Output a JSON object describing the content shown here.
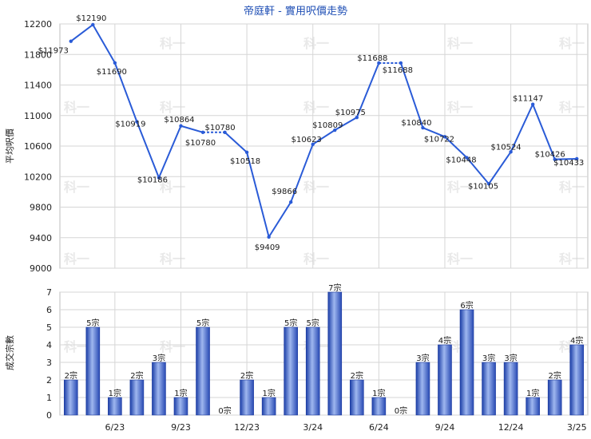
{
  "chart_data": [
    {
      "type": "line",
      "title": "帝庭軒 - 實用呎價走勢",
      "ylabel": "平均呎價",
      "ylim": [
        9000,
        12200
      ],
      "yticks": [
        9000,
        9400,
        9800,
        10200,
        10600,
        11000,
        11400,
        11800,
        12200
      ],
      "grid": true,
      "series": [
        {
          "color": "#2a5bd7",
          "values": [
            11973,
            12190,
            11690,
            10919,
            10186,
            10864,
            10780,
            10780,
            10518,
            9409,
            9866,
            10623,
            10809,
            10975,
            11688,
            11688,
            10840,
            10722,
            10448,
            10105,
            10524,
            11147,
            10426,
            10433
          ],
          "labels": [
            "$11973",
            "$12190",
            "$11690",
            "$10919",
            "$10186",
            "$10864",
            "$10780",
            "$10780",
            "$10518",
            "$9409",
            "$9866",
            "$10623",
            "$10809",
            "$10975",
            "$11688",
            "$11688",
            "$10840",
            "$10722",
            "$10448",
            "$10105",
            "$10524",
            "$11147",
            "$10426",
            "$10433"
          ]
        }
      ]
    },
    {
      "type": "bar",
      "ylabel": "成交宗數",
      "ylim": [
        0,
        7
      ],
      "yticks": [
        0,
        1,
        2,
        3,
        4,
        5,
        6,
        7
      ],
      "grid": true,
      "values": [
        2,
        5,
        1,
        2,
        3,
        1,
        5,
        0,
        2,
        1,
        5,
        5,
        7,
        2,
        1,
        0,
        3,
        4,
        6,
        3,
        3,
        1,
        2,
        4
      ],
      "labels": [
        "2宗",
        "5宗",
        "1宗",
        "2宗",
        "3宗",
        "1宗",
        "5宗",
        "0宗",
        "2宗",
        "1宗",
        "5宗",
        "5宗",
        "7宗",
        "2宗",
        "1宗",
        "0宗",
        "3宗",
        "4宗",
        "6宗",
        "3宗",
        "3宗",
        "1宗",
        "2宗",
        "4宗"
      ],
      "x_ticks": [
        {
          "index": 2,
          "label": "6/23"
        },
        {
          "index": 5,
          "label": "9/23"
        },
        {
          "index": 8,
          "label": "12/23"
        },
        {
          "index": 11,
          "label": "3/24"
        },
        {
          "index": 14,
          "label": "6/24"
        },
        {
          "index": 17,
          "label": "9/24"
        },
        {
          "index": 20,
          "label": "12/24"
        },
        {
          "index": 23,
          "label": "3/25"
        }
      ]
    }
  ],
  "watermark": "科一"
}
